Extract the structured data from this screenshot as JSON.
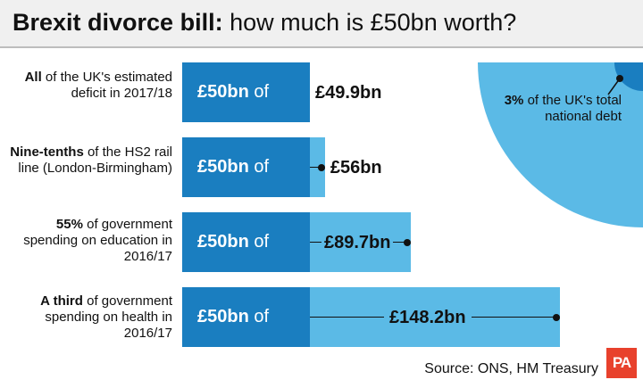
{
  "header": {
    "title_bold": "Brexit divorce bill:",
    "title_rest": " how much is £50bn worth?"
  },
  "colors": {
    "dark_blue": "#1a7ec0",
    "light_blue": "#5bbae6",
    "logo_red": "#e8412c"
  },
  "chart_data": {
    "type": "bar",
    "unit": "£bn",
    "reference_value": 50,
    "categories": [
      "All of the UK's estimated deficit in 2017/18",
      "Nine-tenths of the HS2 rail line (London-Birmingham)",
      "55% of government spending on education in 2016/17",
      "A third of government spending on health in 2016/17"
    ],
    "values": [
      49.9,
      56,
      89.7,
      148.2
    ],
    "rows": [
      {
        "label_bold": "All",
        "label_rest": " of the UK's estimated deficit in 2017/18",
        "bar_text_bold": "£50bn",
        "bar_text_rest": " of",
        "value": 49.9,
        "value_label": "£49.9bn"
      },
      {
        "label_bold": "Nine-tenths",
        "label_rest": " of the HS2 rail line (London-Birmingham)",
        "bar_text_bold": "£50bn",
        "bar_text_rest": " of",
        "value": 56,
        "value_label": "£56bn"
      },
      {
        "label_bold": "55%",
        "label_rest": " of government spending on education in 2016/17",
        "bar_text_bold": "£50bn",
        "bar_text_rest": " of",
        "value": 89.7,
        "value_label": "£89.7bn"
      },
      {
        "label_bold": "A third",
        "label_rest": " of government spending on health in 2016/17",
        "bar_text_bold": "£50bn",
        "bar_text_rest": " of",
        "value": 148.2,
        "value_label": "£148.2bn"
      }
    ],
    "pie": {
      "share_percent": 3,
      "note_bold": "3%",
      "note_rest": " of the UK's total national debt"
    }
  },
  "source": "Source: ONS, HM Treasury",
  "logo_text": "PA"
}
